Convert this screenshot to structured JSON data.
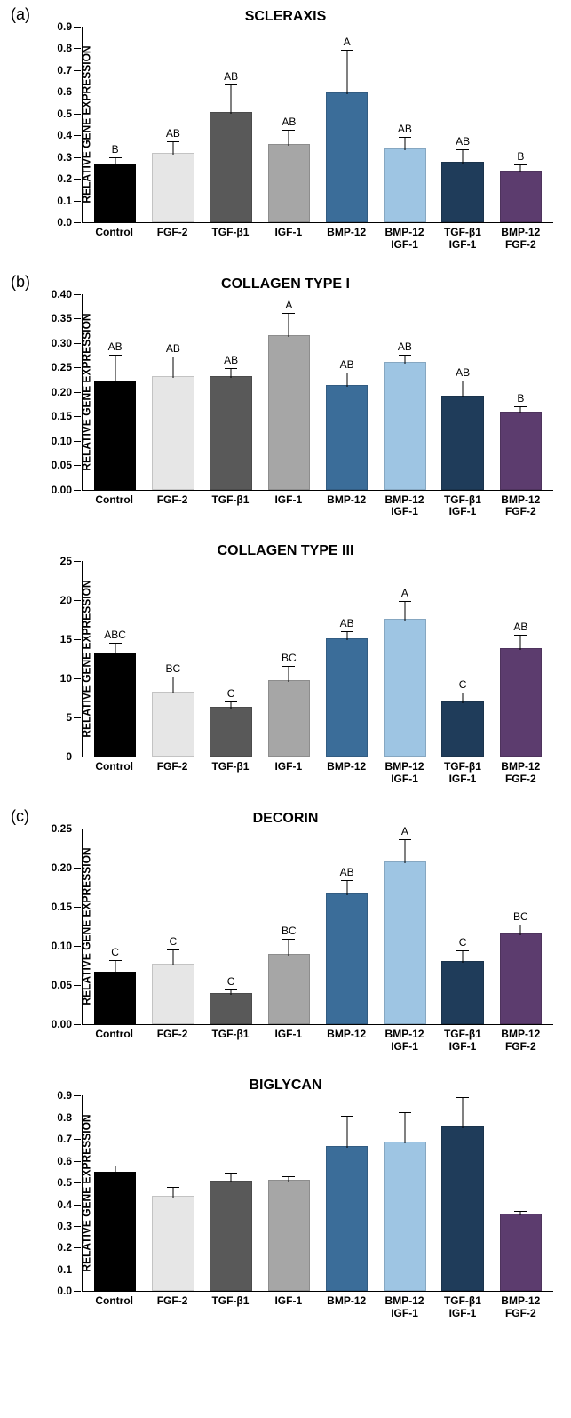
{
  "y_axis_label": "RELATIVE GENE EXPRESSION",
  "categories": [
    {
      "line1": "Control",
      "line2": ""
    },
    {
      "line1": "FGF-2",
      "line2": ""
    },
    {
      "line1": "TGF-β1",
      "line2": ""
    },
    {
      "line1": "IGF-1",
      "line2": ""
    },
    {
      "line1": "BMP-12",
      "line2": ""
    },
    {
      "line1": "BMP-12",
      "line2": "IGF-1"
    },
    {
      "line1": "TGF-β1",
      "line2": "IGF-1"
    },
    {
      "line1": "BMP-12",
      "line2": "FGF-2"
    }
  ],
  "colors": [
    "#000000",
    "#e6e6e6",
    "#595959",
    "#a6a6a6",
    "#3b6d99",
    "#9ec5e3",
    "#1f3c5a",
    "#5c3c6e"
  ],
  "charts": [
    {
      "panel_label": "(a)",
      "title": "SCLERAXIS",
      "ymax": 0.9,
      "ytick_step": 0.1,
      "decimals": 1,
      "values": [
        0.26,
        0.31,
        0.5,
        0.35,
        0.59,
        0.33,
        0.27,
        0.23
      ],
      "errors": [
        0.035,
        0.06,
        0.13,
        0.07,
        0.2,
        0.06,
        0.06,
        0.03
      ],
      "sig": [
        "B",
        "AB",
        "AB",
        "AB",
        "A",
        "AB",
        "AB",
        "B"
      ]
    },
    {
      "panel_label": "(b)",
      "title": "COLLAGEN TYPE I",
      "ymax": 0.4,
      "ytick_step": 0.05,
      "decimals": 2,
      "values": [
        0.218,
        0.228,
        0.228,
        0.312,
        0.21,
        0.258,
        0.188,
        0.155
      ],
      "errors": [
        0.055,
        0.042,
        0.018,
        0.048,
        0.028,
        0.015,
        0.034,
        0.013
      ],
      "sig": [
        "AB",
        "AB",
        "AB",
        "A",
        "AB",
        "AB",
        "AB",
        "B"
      ]
    },
    {
      "panel_label": "",
      "title": "COLLAGEN TYPE III",
      "ymax": 25,
      "ytick_step": 5,
      "decimals": 0,
      "values": [
        13.0,
        8.1,
        6.2,
        9.6,
        14.9,
        17.4,
        6.8,
        13.7
      ],
      "errors": [
        1.5,
        2.0,
        0.8,
        1.9,
        1.0,
        2.4,
        1.3,
        1.8
      ],
      "sig": [
        "ABC",
        "BC",
        "C",
        "BC",
        "AB",
        "A",
        "C",
        "AB"
      ]
    },
    {
      "panel_label": "(c)",
      "title": "DECORIN",
      "ymax": 0.25,
      "ytick_step": 0.05,
      "decimals": 2,
      "values": [
        0.064,
        0.075,
        0.037,
        0.087,
        0.165,
        0.205,
        0.078,
        0.113
      ],
      "errors": [
        0.017,
        0.019,
        0.006,
        0.021,
        0.018,
        0.03,
        0.015,
        0.013
      ],
      "sig": [
        "C",
        "C",
        "C",
        "BC",
        "AB",
        "A",
        "C",
        "BC"
      ]
    },
    {
      "panel_label": "",
      "title": "BIGLYCAN",
      "ymax": 0.9,
      "ytick_step": 0.1,
      "decimals": 1,
      "values": [
        0.54,
        0.43,
        0.5,
        0.505,
        0.66,
        0.68,
        0.75,
        0.35
      ],
      "errors": [
        0.035,
        0.045,
        0.04,
        0.02,
        0.145,
        0.14,
        0.14,
        0.015
      ],
      "sig": [
        "",
        "",
        "",
        "",
        "",
        "",
        "",
        ""
      ]
    }
  ]
}
